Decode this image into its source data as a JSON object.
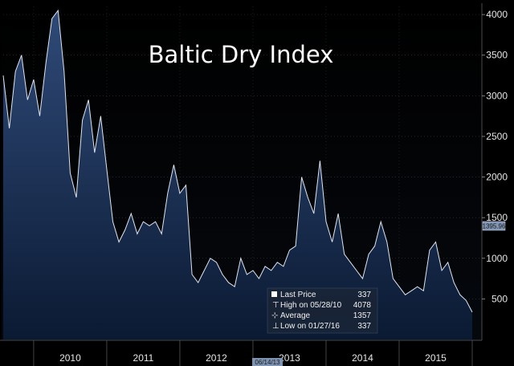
{
  "chart_data": {
    "type": "area",
    "title": "Baltic Dry Index",
    "xlabel": "",
    "ylabel": "",
    "ylim": [
      0,
      4100
    ],
    "yticks": [
      500,
      1000,
      1500,
      2000,
      2500,
      3000,
      3500,
      4000
    ],
    "yaxis_side": "right",
    "grid": true,
    "years": [
      "2010",
      "2011",
      "2012",
      "2013",
      "2014",
      "2015"
    ],
    "current_tag": "1395.96",
    "date_tag": "06/14/13",
    "series": [
      {
        "x": [
          "2009-08",
          "2009-09",
          "2009-10",
          "2009-11",
          "2009-12",
          "2010-01",
          "2010-02",
          "2010-03",
          "2010-04",
          "2010-05",
          "2010-06",
          "2010-07",
          "2010-08",
          "2010-09",
          "2010-10",
          "2010-11",
          "2010-12",
          "2011-01",
          "2011-02",
          "2011-03",
          "2011-04",
          "2011-05",
          "2011-06",
          "2011-07",
          "2011-08",
          "2011-09",
          "2011-10",
          "2011-11",
          "2011-12",
          "2012-01",
          "2012-02",
          "2012-03",
          "2012-04",
          "2012-05",
          "2012-06",
          "2012-07",
          "2012-08",
          "2012-09",
          "2012-10",
          "2012-11",
          "2012-12",
          "2013-01",
          "2013-02",
          "2013-03",
          "2013-04",
          "2013-05",
          "2013-06",
          "2013-07",
          "2013-08",
          "2013-09",
          "2013-10",
          "2013-11",
          "2013-12",
          "2014-01",
          "2014-02",
          "2014-03",
          "2014-04",
          "2014-05",
          "2014-06",
          "2014-07",
          "2014-08",
          "2014-09",
          "2014-10",
          "2014-11",
          "2014-12",
          "2015-01",
          "2015-02",
          "2015-03",
          "2015-04",
          "2015-05",
          "2015-06",
          "2015-07",
          "2015-08",
          "2015-09",
          "2015-10",
          "2015-11",
          "2015-12",
          "2016-01"
        ],
        "values": [
          3250,
          2600,
          3300,
          3500,
          2950,
          3200,
          2750,
          3400,
          3950,
          4050,
          3300,
          2050,
          1750,
          2700,
          2950,
          2300,
          2750,
          2100,
          1450,
          1200,
          1350,
          1550,
          1300,
          1450,
          1400,
          1450,
          1300,
          1800,
          2150,
          1800,
          1900,
          800,
          700,
          850,
          1000,
          950,
          800,
          700,
          650,
          1000,
          800,
          850,
          750,
          900,
          850,
          950,
          900,
          1100,
          1150,
          2000,
          1750,
          1550,
          2200,
          1450,
          1200,
          1550,
          1050,
          950,
          850,
          750,
          1050,
          1150,
          1450,
          1200,
          750,
          650,
          550,
          600,
          650,
          600,
          1100,
          1200,
          850,
          950,
          700,
          550,
          480,
          337
        ]
      }
    ],
    "legend": [
      {
        "label": "Last Price",
        "value": "337"
      },
      {
        "label": "High on 05/28/10",
        "value": "4078"
      },
      {
        "label": "Average",
        "value": "1357"
      },
      {
        "label": "Low on 01/27/16",
        "value": "337"
      }
    ]
  }
}
